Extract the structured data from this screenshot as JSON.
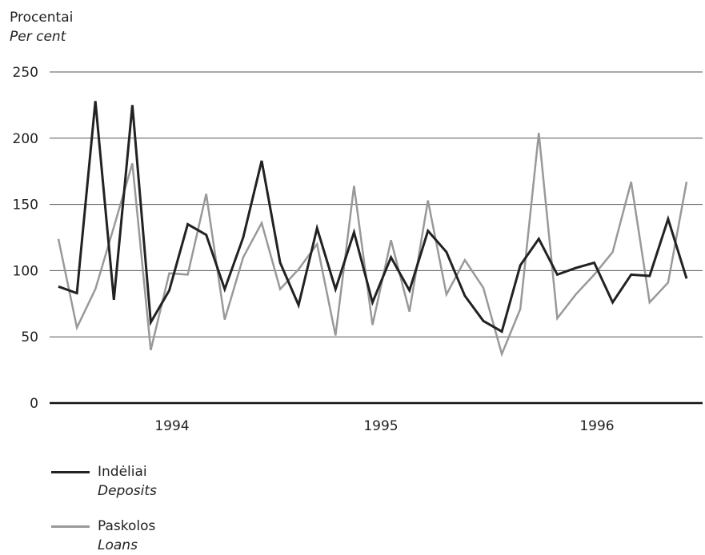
{
  "y_label": {
    "line1": "Procentai",
    "line2": "Per cent"
  },
  "chart_data": {
    "type": "line",
    "ylim": [
      0,
      250
    ],
    "yticks": [
      0,
      50,
      100,
      150,
      200,
      250
    ],
    "xticks": [
      "1994",
      "1995",
      "1996"
    ],
    "grid": true,
    "legend_position": "bottom-left",
    "series": [
      {
        "name": "Indėliai / Deposits",
        "color": "#222222",
        "values": [
          88,
          83,
          228,
          78,
          225,
          61,
          85,
          135,
          127,
          86,
          125,
          183,
          106,
          74,
          132,
          86,
          129,
          76,
          110,
          85,
          130,
          114,
          81,
          62,
          54,
          104,
          124,
          97,
          102,
          106,
          76,
          97,
          96,
          139,
          94
        ]
      },
      {
        "name": "Paskolos / Loans",
        "color": "#999999",
        "values": [
          124,
          57,
          86,
          133,
          181,
          40,
          98,
          97,
          158,
          63,
          110,
          136,
          86,
          101,
          120,
          51,
          164,
          59,
          123,
          69,
          153,
          82,
          108,
          87,
          37,
          71,
          204,
          64,
          82,
          97,
          114,
          167,
          76,
          91,
          167
        ]
      }
    ]
  },
  "legend": [
    {
      "label": "Indėliai",
      "label_en": "Deposits",
      "color": "#222222"
    },
    {
      "label": "Paskolos",
      "label_en": "Loans",
      "color": "#999999"
    }
  ]
}
